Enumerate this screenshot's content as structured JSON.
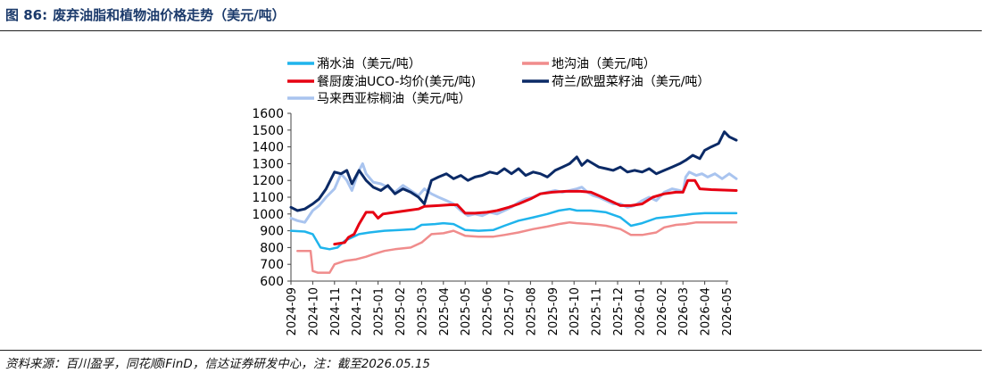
{
  "figure": {
    "number": "图 86:",
    "title": "废弃油脂和植物油价格走势（美元/吨）"
  },
  "source": "资料来源：百川盈孚，同花顺iFinD，信达证券研发中心，注：截至2026.05.15",
  "colors": {
    "title": "#1b3a6b",
    "axis": "#444444"
  },
  "chart_data": {
    "type": "line",
    "ylim": [
      600,
      1600
    ],
    "yticks": [
      600,
      700,
      800,
      900,
      1000,
      1100,
      1200,
      1300,
      1400,
      1500,
      1600
    ],
    "xlim": [
      "2024-09",
      "2026-05-15"
    ],
    "xticks": [
      "2024-09",
      "2024-10",
      "2024-11",
      "2024-12",
      "2025-01",
      "2025-02",
      "2025-03",
      "2025-04",
      "2025-05",
      "2025-06",
      "2025-07",
      "2025-08",
      "2025-09",
      "2025-10",
      "2025-11",
      "2025-12",
      "2026-01",
      "2026-02",
      "2026-03",
      "2026-04",
      "2026-05"
    ],
    "grid": false,
    "legend_position": "top",
    "series": [
      {
        "name": "潲水油（美元/吨）",
        "color": "#1fb4ec",
        "width": 2.5,
        "points": [
          [
            "2024-09-01",
            900
          ],
          [
            "2024-09-20",
            895
          ],
          [
            "2024-10-01",
            880
          ],
          [
            "2024-10-12",
            800
          ],
          [
            "2024-10-25",
            790
          ],
          [
            "2024-11-05",
            800
          ],
          [
            "2024-11-15",
            840
          ],
          [
            "2024-11-25",
            860
          ],
          [
            "2024-12-05",
            880
          ],
          [
            "2024-12-20",
            890
          ],
          [
            "2025-01-10",
            900
          ],
          [
            "2025-02-01",
            905
          ],
          [
            "2025-02-20",
            910
          ],
          [
            "2025-03-01",
            935
          ],
          [
            "2025-03-20",
            940
          ],
          [
            "2025-04-01",
            945
          ],
          [
            "2025-04-15",
            940
          ],
          [
            "2025-05-01",
            905
          ],
          [
            "2025-05-20",
            900
          ],
          [
            "2025-06-10",
            905
          ],
          [
            "2025-06-25",
            930
          ],
          [
            "2025-07-15",
            960
          ],
          [
            "2025-08-05",
            980
          ],
          [
            "2025-08-25",
            1000
          ],
          [
            "2025-09-10",
            1020
          ],
          [
            "2025-09-25",
            1030
          ],
          [
            "2025-10-05",
            1020
          ],
          [
            "2025-10-25",
            1020
          ],
          [
            "2025-11-15",
            1010
          ],
          [
            "2025-12-05",
            980
          ],
          [
            "2025-12-20",
            930
          ],
          [
            "2026-01-05",
            945
          ],
          [
            "2026-01-25",
            975
          ],
          [
            "2026-02-15",
            985
          ],
          [
            "2026-03-05",
            995
          ],
          [
            "2026-03-15",
            1000
          ],
          [
            "2026-04-01",
            1005
          ],
          [
            "2026-04-15",
            1005
          ],
          [
            "2026-05-15",
            1005
          ]
        ]
      },
      {
        "name": "地沟油（美元/吨）",
        "color": "#f08c8c",
        "width": 2.5,
        "points": [
          [
            "2024-09-10",
            780
          ],
          [
            "2024-09-28",
            780
          ],
          [
            "2024-10-01",
            660
          ],
          [
            "2024-10-08",
            650
          ],
          [
            "2024-10-25",
            650
          ],
          [
            "2024-11-01",
            700
          ],
          [
            "2024-11-15",
            720
          ],
          [
            "2024-12-01",
            730
          ],
          [
            "2024-12-15",
            745
          ],
          [
            "2024-12-25",
            760
          ],
          [
            "2025-01-10",
            780
          ],
          [
            "2025-01-25",
            790
          ],
          [
            "2025-02-15",
            800
          ],
          [
            "2025-03-01",
            830
          ],
          [
            "2025-03-15",
            880
          ],
          [
            "2025-04-01",
            885
          ],
          [
            "2025-04-15",
            900
          ],
          [
            "2025-05-01",
            870
          ],
          [
            "2025-05-20",
            865
          ],
          [
            "2025-06-10",
            865
          ],
          [
            "2025-06-25",
            875
          ],
          [
            "2025-07-15",
            890
          ],
          [
            "2025-08-05",
            910
          ],
          [
            "2025-08-25",
            925
          ],
          [
            "2025-09-10",
            940
          ],
          [
            "2025-09-25",
            950
          ],
          [
            "2025-10-05",
            945
          ],
          [
            "2025-10-25",
            940
          ],
          [
            "2025-11-15",
            930
          ],
          [
            "2025-12-05",
            910
          ],
          [
            "2025-12-20",
            875
          ],
          [
            "2026-01-05",
            875
          ],
          [
            "2026-01-25",
            890
          ],
          [
            "2026-02-05",
            920
          ],
          [
            "2026-02-20",
            935
          ],
          [
            "2026-03-05",
            940
          ],
          [
            "2026-03-20",
            950
          ],
          [
            "2026-04-05",
            950
          ],
          [
            "2026-05-15",
            950
          ]
        ]
      },
      {
        "name": "餐厨废油UCO-均价(美元/吨)",
        "color": "#e60012",
        "width": 3,
        "points": [
          [
            "2024-11-01",
            820
          ],
          [
            "2024-11-15",
            830
          ],
          [
            "2024-11-20",
            860
          ],
          [
            "2024-11-28",
            880
          ],
          [
            "2024-12-05",
            940
          ],
          [
            "2024-12-15",
            1010
          ],
          [
            "2024-12-25",
            1010
          ],
          [
            "2025-01-01",
            975
          ],
          [
            "2025-01-08",
            1000
          ],
          [
            "2025-01-25",
            1010
          ],
          [
            "2025-02-10",
            1020
          ],
          [
            "2025-02-25",
            1030
          ],
          [
            "2025-03-05",
            1045
          ],
          [
            "2025-03-25",
            1050
          ],
          [
            "2025-04-10",
            1055
          ],
          [
            "2025-04-20",
            1055
          ],
          [
            "2025-05-01",
            1005
          ],
          [
            "2025-05-15",
            1005
          ],
          [
            "2025-06-01",
            1010
          ],
          [
            "2025-06-15",
            1020
          ],
          [
            "2025-07-01",
            1040
          ],
          [
            "2025-07-15",
            1060
          ],
          [
            "2025-08-01",
            1090
          ],
          [
            "2025-08-15",
            1120
          ],
          [
            "2025-09-01",
            1130
          ],
          [
            "2025-09-20",
            1135
          ],
          [
            "2025-10-10",
            1135
          ],
          [
            "2025-10-25",
            1130
          ],
          [
            "2025-11-10",
            1100
          ],
          [
            "2025-11-25",
            1070
          ],
          [
            "2025-12-05",
            1050
          ],
          [
            "2025-12-20",
            1050
          ],
          [
            "2026-01-05",
            1060
          ],
          [
            "2026-01-20",
            1100
          ],
          [
            "2026-02-05",
            1120
          ],
          [
            "2026-02-20",
            1130
          ],
          [
            "2026-03-01",
            1130
          ],
          [
            "2026-03-08",
            1200
          ],
          [
            "2026-03-18",
            1200
          ],
          [
            "2026-03-25",
            1150
          ],
          [
            "2026-04-10",
            1145
          ],
          [
            "2026-05-15",
            1140
          ]
        ]
      },
      {
        "name": "荷兰/欧盟菜籽油（美元/吨）",
        "color": "#0b2a66",
        "width": 3,
        "points": [
          [
            "2024-09-01",
            1040
          ],
          [
            "2024-09-10",
            1020
          ],
          [
            "2024-09-20",
            1030
          ],
          [
            "2024-10-01",
            1060
          ],
          [
            "2024-10-10",
            1090
          ],
          [
            "2024-10-20",
            1150
          ],
          [
            "2024-11-01",
            1250
          ],
          [
            "2024-11-10",
            1240
          ],
          [
            "2024-11-18",
            1260
          ],
          [
            "2024-11-25",
            1180
          ],
          [
            "2024-12-05",
            1260
          ],
          [
            "2024-12-15",
            1200
          ],
          [
            "2024-12-25",
            1160
          ],
          [
            "2025-01-05",
            1140
          ],
          [
            "2025-01-15",
            1170
          ],
          [
            "2025-01-25",
            1120
          ],
          [
            "2025-02-05",
            1150
          ],
          [
            "2025-02-15",
            1130
          ],
          [
            "2025-02-25",
            1100
          ],
          [
            "2025-03-05",
            1060
          ],
          [
            "2025-03-15",
            1200
          ],
          [
            "2025-03-25",
            1220
          ],
          [
            "2025-04-05",
            1240
          ],
          [
            "2025-04-15",
            1210
          ],
          [
            "2025-04-25",
            1230
          ],
          [
            "2025-05-05",
            1200
          ],
          [
            "2025-05-15",
            1220
          ],
          [
            "2025-05-25",
            1230
          ],
          [
            "2025-06-05",
            1250
          ],
          [
            "2025-06-15",
            1240
          ],
          [
            "2025-06-25",
            1270
          ],
          [
            "2025-07-05",
            1240
          ],
          [
            "2025-07-15",
            1270
          ],
          [
            "2025-07-25",
            1230
          ],
          [
            "2025-08-05",
            1250
          ],
          [
            "2025-08-15",
            1240
          ],
          [
            "2025-08-25",
            1220
          ],
          [
            "2025-09-05",
            1260
          ],
          [
            "2025-09-15",
            1280
          ],
          [
            "2025-09-25",
            1300
          ],
          [
            "2025-10-05",
            1340
          ],
          [
            "2025-10-12",
            1290
          ],
          [
            "2025-10-20",
            1320
          ],
          [
            "2025-10-28",
            1300
          ],
          [
            "2025-11-05",
            1280
          ],
          [
            "2025-11-15",
            1270
          ],
          [
            "2025-11-25",
            1260
          ],
          [
            "2025-12-05",
            1280
          ],
          [
            "2025-12-15",
            1250
          ],
          [
            "2025-12-25",
            1260
          ],
          [
            "2026-01-05",
            1250
          ],
          [
            "2026-01-15",
            1270
          ],
          [
            "2026-01-25",
            1240
          ],
          [
            "2026-02-05",
            1260
          ],
          [
            "2026-02-15",
            1280
          ],
          [
            "2026-02-25",
            1300
          ],
          [
            "2026-03-05",
            1320
          ],
          [
            "2026-03-15",
            1350
          ],
          [
            "2026-03-25",
            1330
          ],
          [
            "2026-04-01",
            1380
          ],
          [
            "2026-04-10",
            1400
          ],
          [
            "2026-04-20",
            1420
          ],
          [
            "2026-04-28",
            1490
          ],
          [
            "2026-05-05",
            1460
          ],
          [
            "2026-05-15",
            1440
          ]
        ]
      },
      {
        "name": "马来西亚棕榈油（美元/吨）",
        "color": "#a9c4ef",
        "width": 3,
        "points": [
          [
            "2024-09-01",
            975
          ],
          [
            "2024-09-10",
            960
          ],
          [
            "2024-09-20",
            950
          ],
          [
            "2024-10-01",
            1020
          ],
          [
            "2024-10-10",
            1050
          ],
          [
            "2024-10-20",
            1100
          ],
          [
            "2024-11-01",
            1150
          ],
          [
            "2024-11-10",
            1240
          ],
          [
            "2024-11-18",
            1200
          ],
          [
            "2024-11-25",
            1140
          ],
          [
            "2024-12-05",
            1260
          ],
          [
            "2024-12-10",
            1300
          ],
          [
            "2024-12-15",
            1240
          ],
          [
            "2024-12-25",
            1190
          ],
          [
            "2025-01-05",
            1180
          ],
          [
            "2025-01-15",
            1160
          ],
          [
            "2025-01-25",
            1130
          ],
          [
            "2025-02-05",
            1170
          ],
          [
            "2025-02-15",
            1140
          ],
          [
            "2025-02-25",
            1110
          ],
          [
            "2025-03-05",
            1150
          ],
          [
            "2025-03-15",
            1120
          ],
          [
            "2025-03-25",
            1100
          ],
          [
            "2025-04-05",
            1080
          ],
          [
            "2025-04-15",
            1060
          ],
          [
            "2025-04-25",
            1020
          ],
          [
            "2025-05-05",
            990
          ],
          [
            "2025-05-15",
            1000
          ],
          [
            "2025-05-25",
            990
          ],
          [
            "2025-06-05",
            1010
          ],
          [
            "2025-06-15",
            1000
          ],
          [
            "2025-06-25",
            1020
          ],
          [
            "2025-07-05",
            1040
          ],
          [
            "2025-07-15",
            1070
          ],
          [
            "2025-07-25",
            1090
          ],
          [
            "2025-08-05",
            1100
          ],
          [
            "2025-08-15",
            1120
          ],
          [
            "2025-08-25",
            1130
          ],
          [
            "2025-09-05",
            1140
          ],
          [
            "2025-09-15",
            1130
          ],
          [
            "2025-09-25",
            1140
          ],
          [
            "2025-10-05",
            1150
          ],
          [
            "2025-10-12",
            1160
          ],
          [
            "2025-10-20",
            1130
          ],
          [
            "2025-10-28",
            1110
          ],
          [
            "2025-11-05",
            1100
          ],
          [
            "2025-11-15",
            1080
          ],
          [
            "2025-11-25",
            1060
          ],
          [
            "2025-12-05",
            1060
          ],
          [
            "2025-12-15",
            1040
          ],
          [
            "2025-12-25",
            1050
          ],
          [
            "2026-01-05",
            1080
          ],
          [
            "2026-01-15",
            1100
          ],
          [
            "2026-01-25",
            1080
          ],
          [
            "2026-02-05",
            1130
          ],
          [
            "2026-02-15",
            1150
          ],
          [
            "2026-02-25",
            1140
          ],
          [
            "2026-03-01",
            1130
          ],
          [
            "2026-03-05",
            1220
          ],
          [
            "2026-03-10",
            1250
          ],
          [
            "2026-03-20",
            1230
          ],
          [
            "2026-03-28",
            1240
          ],
          [
            "2026-04-05",
            1220
          ],
          [
            "2026-04-15",
            1240
          ],
          [
            "2026-04-25",
            1210
          ],
          [
            "2026-05-05",
            1240
          ],
          [
            "2026-05-15",
            1210
          ]
        ]
      }
    ],
    "legend": [
      {
        "series": 0,
        "col": 0,
        "row": 0
      },
      {
        "series": 1,
        "col": 1,
        "row": 0
      },
      {
        "series": 2,
        "col": 0,
        "row": 1
      },
      {
        "series": 3,
        "col": 1,
        "row": 1
      },
      {
        "series": 4,
        "col": 0,
        "row": 2
      }
    ]
  }
}
